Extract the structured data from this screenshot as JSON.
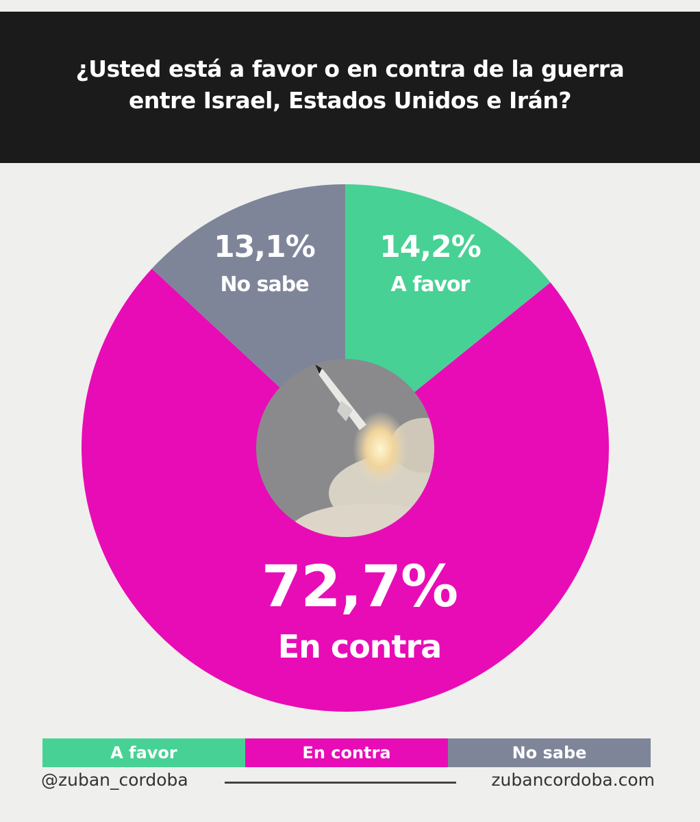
{
  "chart_data": {
    "type": "pie",
    "title": "¿Usted está a favor o en contra de la guerra entre Israel, Estados Unidos e Irán?",
    "slices": [
      {
        "label": "A favor",
        "value": 14.2,
        "value_label": "14,2%",
        "color": "#48d195"
      },
      {
        "label": "En contra",
        "value": 72.7,
        "value_label": "72,7%",
        "color": "#e80cb6"
      },
      {
        "label": "No sabe",
        "value": 13.1,
        "value_label": "13,1%",
        "color": "#7f8599"
      }
    ],
    "start": "top",
    "direction": "clockwise",
    "center_image": "missile-launch-photo",
    "legend": [
      "A favor",
      "En contra",
      "No sabe"
    ],
    "legend_placement": "bottom"
  },
  "footer": {
    "handle": "@zuban_cordoba",
    "website": "zubancordoba.com"
  }
}
